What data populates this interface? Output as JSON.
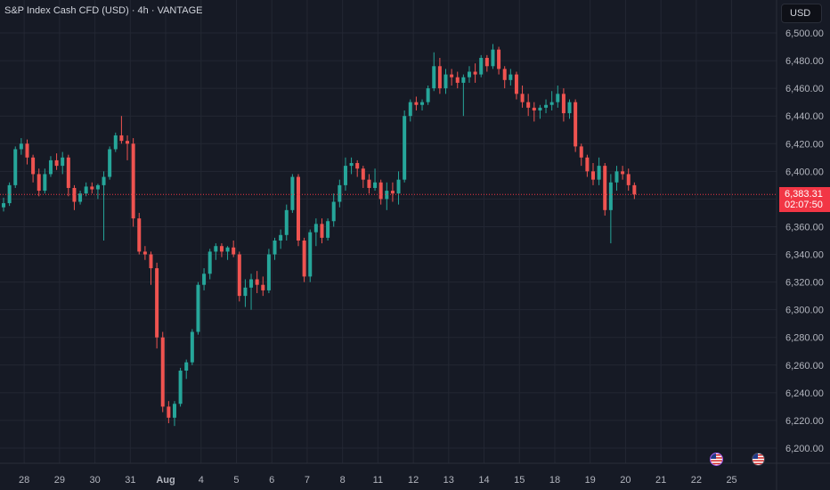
{
  "header": {
    "title": "S&P Index Cash CFD (USD) · 4h · VANTAGE"
  },
  "currency_button": {
    "label": "USD"
  },
  "last_price_label": {
    "price": "6,383.31",
    "countdown": "02:07:50"
  },
  "colors": {
    "bull": "#26a69a",
    "bear": "#ef5350",
    "background": "#161a25",
    "grid": "#232733",
    "axis_text": "#b2b5be",
    "last_price": "#f23645"
  },
  "event_markers": [
    {
      "icon": "us-flag-icon",
      "highlighted": true
    },
    {
      "icon": "us-flag-icon",
      "highlighted": false
    }
  ],
  "chart_data": {
    "type": "candlestick",
    "timeframe": "4h",
    "ylim": [
      6190,
      6510
    ],
    "y_ticks": [
      6200,
      6220,
      6240,
      6260,
      6280,
      6300,
      6320,
      6340,
      6360,
      6380,
      6400,
      6420,
      6440,
      6460,
      6480,
      6500
    ],
    "y_tick_labels": [
      "6,200.00",
      "6,220.00",
      "6,240.00",
      "6,260.00",
      "6,280.00",
      "6,300.00",
      "6,320.00",
      "6,340.00",
      "6,360.00",
      "6,380.00",
      "6,400.00",
      "6,420.00",
      "6,440.00",
      "6,460.00",
      "6,480.00",
      "6,500.00"
    ],
    "x_ticks": [
      {
        "label": "28",
        "bar": 3.5
      },
      {
        "label": "29",
        "bar": 9.5
      },
      {
        "label": "30",
        "bar": 15.5
      },
      {
        "label": "31",
        "bar": 21.5
      },
      {
        "label": "Aug",
        "bar": 27.5,
        "bold": true
      },
      {
        "label": "4",
        "bar": 33.5
      },
      {
        "label": "5",
        "bar": 39.5
      },
      {
        "label": "6",
        "bar": 45.5
      },
      {
        "label": "7",
        "bar": 51.5
      },
      {
        "label": "8",
        "bar": 57.5
      },
      {
        "label": "11",
        "bar": 63.5
      },
      {
        "label": "12",
        "bar": 69.5
      },
      {
        "label": "13",
        "bar": 75.5
      },
      {
        "label": "14",
        "bar": 81.5
      },
      {
        "label": "15",
        "bar": 87.5
      },
      {
        "label": "18",
        "bar": 93.5
      },
      {
        "label": "19",
        "bar": 99.5
      },
      {
        "label": "20",
        "bar": 105.5
      },
      {
        "label": "21",
        "bar": 111.5
      },
      {
        "label": "22",
        "bar": 117.5
      },
      {
        "label": "25",
        "bar": 123.5
      }
    ],
    "last_price": 6383.31,
    "candles": [
      [
        6374,
        6381,
        6371,
        6377
      ],
      [
        6377,
        6392,
        6375,
        6390
      ],
      [
        6390,
        6418,
        6388,
        6416
      ],
      [
        6416,
        6424,
        6412,
        6420
      ],
      [
        6420,
        6423,
        6405,
        6410
      ],
      [
        6410,
        6412,
        6392,
        6398
      ],
      [
        6398,
        6402,
        6382,
        6386
      ],
      [
        6386,
        6402,
        6384,
        6398
      ],
      [
        6398,
        6411,
        6396,
        6408
      ],
      [
        6408,
        6413,
        6401,
        6404
      ],
      [
        6404,
        6414,
        6398,
        6410
      ],
      [
        6410,
        6412,
        6382,
        6388
      ],
      [
        6388,
        6390,
        6372,
        6378
      ],
      [
        6378,
        6386,
        6376,
        6384
      ],
      [
        6384,
        6392,
        6382,
        6389
      ],
      [
        6389,
        6392,
        6384,
        6387
      ],
      [
        6387,
        6391,
        6380,
        6390
      ],
      [
        6390,
        6400,
        6350,
        6396
      ],
      [
        6396,
        6418,
        6394,
        6416
      ],
      [
        6416,
        6428,
        6414,
        6426
      ],
      [
        6426,
        6440,
        6420,
        6422
      ],
      [
        6422,
        6426,
        6408,
        6420
      ],
      [
        6420,
        6424,
        6360,
        6366
      ],
      [
        6366,
        6370,
        6340,
        6342
      ],
      [
        6342,
        6346,
        6336,
        6340
      ],
      [
        6340,
        6342,
        6318,
        6330
      ],
      [
        6330,
        6334,
        6272,
        6280
      ],
      [
        6280,
        6284,
        6226,
        6230
      ],
      [
        6230,
        6234,
        6218,
        6222
      ],
      [
        6222,
        6234,
        6216,
        6232
      ],
      [
        6232,
        6258,
        6230,
        6256
      ],
      [
        6256,
        6264,
        6250,
        6262
      ],
      [
        6262,
        6286,
        6260,
        6284
      ],
      [
        6284,
        6320,
        6282,
        6318
      ],
      [
        6318,
        6330,
        6314,
        6326
      ],
      [
        6326,
        6344,
        6322,
        6342
      ],
      [
        6342,
        6348,
        6336,
        6346
      ],
      [
        6346,
        6348,
        6338,
        6342
      ],
      [
        6342,
        6346,
        6336,
        6345
      ],
      [
        6345,
        6350,
        6338,
        6340
      ],
      [
        6340,
        6342,
        6306,
        6310
      ],
      [
        6310,
        6322,
        6302,
        6316
      ],
      [
        6316,
        6326,
        6300,
        6322
      ],
      [
        6322,
        6328,
        6312,
        6318
      ],
      [
        6318,
        6324,
        6310,
        6314
      ],
      [
        6314,
        6344,
        6312,
        6340
      ],
      [
        6340,
        6352,
        6336,
        6350
      ],
      [
        6350,
        6358,
        6344,
        6354
      ],
      [
        6354,
        6376,
        6350,
        6372
      ],
      [
        6372,
        6398,
        6370,
        6396
      ],
      [
        6396,
        6398,
        6346,
        6350
      ],
      [
        6350,
        6352,
        6320,
        6324
      ],
      [
        6324,
        6358,
        6320,
        6356
      ],
      [
        6356,
        6366,
        6346,
        6362
      ],
      [
        6362,
        6366,
        6348,
        6352
      ],
      [
        6352,
        6366,
        6350,
        6364
      ],
      [
        6364,
        6384,
        6360,
        6378
      ],
      [
        6378,
        6394,
        6374,
        6390
      ],
      [
        6390,
        6410,
        6386,
        6404
      ],
      [
        6404,
        6410,
        6398,
        6406
      ],
      [
        6406,
        6408,
        6396,
        6402
      ],
      [
        6402,
        6404,
        6388,
        6394
      ],
      [
        6394,
        6398,
        6384,
        6388
      ],
      [
        6388,
        6402,
        6386,
        6392
      ],
      [
        6392,
        6394,
        6376,
        6380
      ],
      [
        6380,
        6392,
        6372,
        6386
      ],
      [
        6386,
        6392,
        6378,
        6384
      ],
      [
        6384,
        6400,
        6376,
        6394
      ],
      [
        6394,
        6444,
        6392,
        6440
      ],
      [
        6440,
        6452,
        6436,
        6450
      ],
      [
        6450,
        6454,
        6444,
        6448
      ],
      [
        6448,
        6452,
        6444,
        6450
      ],
      [
        6450,
        6462,
        6448,
        6460
      ],
      [
        6460,
        6486,
        6458,
        6476
      ],
      [
        6476,
        6482,
        6456,
        6460
      ],
      [
        6460,
        6474,
        6456,
        6470
      ],
      [
        6470,
        6474,
        6462,
        6468
      ],
      [
        6468,
        6472,
        6460,
        6464
      ],
      [
        6464,
        6470,
        6440,
        6468
      ],
      [
        6468,
        6476,
        6464,
        6472
      ],
      [
        6472,
        6478,
        6464,
        6470
      ],
      [
        6470,
        6484,
        6468,
        6482
      ],
      [
        6482,
        6484,
        6472,
        6476
      ],
      [
        6476,
        6492,
        6474,
        6488
      ],
      [
        6488,
        6490,
        6470,
        6474
      ],
      [
        6474,
        6476,
        6460,
        6466
      ],
      [
        6466,
        6474,
        6462,
        6470
      ],
      [
        6470,
        6472,
        6452,
        6456
      ],
      [
        6456,
        6462,
        6446,
        6450
      ],
      [
        6450,
        6456,
        6440,
        6446
      ],
      [
        6446,
        6450,
        6436,
        6444
      ],
      [
        6444,
        6448,
        6438,
        6446
      ],
      [
        6446,
        6452,
        6442,
        6448
      ],
      [
        6448,
        6458,
        6444,
        6450
      ],
      [
        6450,
        6462,
        6446,
        6456
      ],
      [
        6456,
        6460,
        6436,
        6442
      ],
      [
        6442,
        6452,
        6438,
        6450
      ],
      [
        6450,
        6452,
        6414,
        6418
      ],
      [
        6418,
        6420,
        6404,
        6410
      ],
      [
        6410,
        6412,
        6396,
        6400
      ],
      [
        6400,
        6406,
        6390,
        6394
      ],
      [
        6394,
        6410,
        6390,
        6404
      ],
      [
        6404,
        6406,
        6368,
        6372
      ],
      [
        6372,
        6398,
        6348,
        6392
      ],
      [
        6392,
        6404,
        6386,
        6400
      ],
      [
        6400,
        6404,
        6394,
        6398
      ],
      [
        6398,
        6402,
        6386,
        6390
      ],
      [
        6390,
        6392,
        6380,
        6383.31
      ]
    ]
  }
}
